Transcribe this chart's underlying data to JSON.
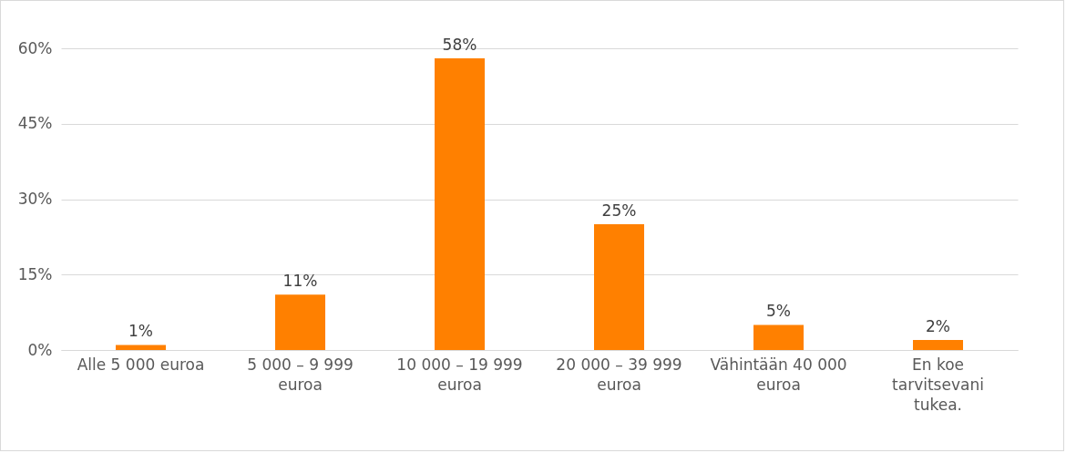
{
  "chart_data": {
    "type": "bar",
    "categories": [
      "Alle 5 000 euroa",
      "5 000 – 9 999 euroa",
      "10 000 – 19 999 euroa",
      "20 000 – 39 999 euroa",
      "Vähintään 40 000 euroa",
      "En koe tarvitsevani tukea."
    ],
    "values": [
      1,
      11,
      58,
      25,
      5,
      2
    ],
    "value_labels": [
      "1%",
      "11%",
      "58%",
      "25%",
      "5%",
      "2%"
    ],
    "color": "#ff8000",
    "ylim": [
      0,
      60
    ],
    "yticks": [
      {
        "value": 0,
        "label": "0%"
      },
      {
        "value": 15,
        "label": "15%"
      },
      {
        "value": 30,
        "label": "30%"
      },
      {
        "value": 45,
        "label": "45%"
      },
      {
        "value": 60,
        "label": "60%"
      }
    ],
    "grid": "y"
  }
}
